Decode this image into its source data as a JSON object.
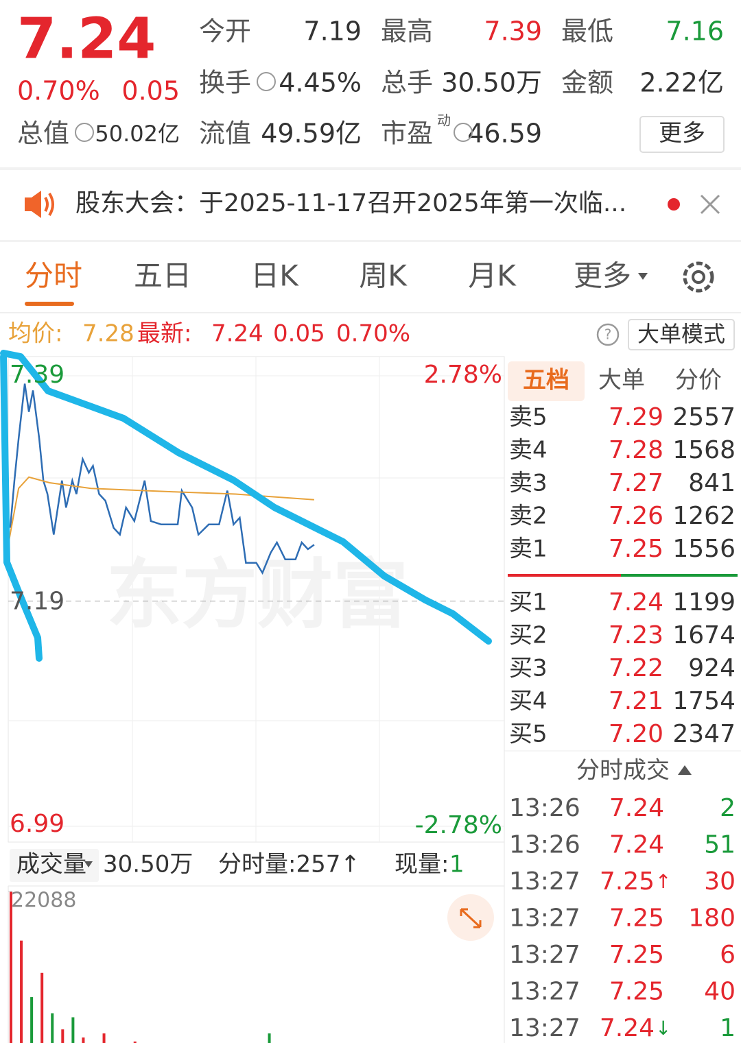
{
  "header": {
    "price": "7.24",
    "change_pct": "0.70%",
    "change": "0.05",
    "stats": [
      {
        "label": "今开",
        "value": "7.19"
      },
      {
        "label": "最高",
        "value": "7.39"
      },
      {
        "label": "最低",
        "value": "7.16"
      },
      {
        "label": "换手",
        "value": "4.45%"
      },
      {
        "label": "总手",
        "value": "30.50万"
      },
      {
        "label": "金额",
        "value": "2.22亿"
      },
      {
        "label": "总值",
        "value": "50.02亿"
      },
      {
        "label": "流值",
        "value": "49.59亿"
      },
      {
        "label": "市盈",
        "sup": "动",
        "value": "46.59"
      }
    ],
    "more": "更多"
  },
  "notice": {
    "text": "股东大会：于2025-11-17召开2025年第一次临..."
  },
  "tabs": [
    "分时",
    "五日",
    "日K",
    "周K",
    "月K",
    "更多"
  ],
  "infobar": {
    "avg_label": "均价:",
    "avg": "7.28",
    "last_label": "最新:",
    "last": "7.24",
    "change": "0.05",
    "change_pct": "0.70%",
    "mode_button": "大单模式"
  },
  "intraday": {
    "type": "line",
    "xlim": [
      0,
      240
    ],
    "ylim": [
      6.99,
      7.39
    ],
    "yticks": [
      6.99,
      7.19,
      7.39
    ],
    "right_labels": [
      "2.78%",
      "-2.78%"
    ],
    "series": [
      {
        "color": "#2e6db4",
        "x": [
          1,
          3,
          5,
          8,
          10,
          12,
          15,
          17,
          19,
          22,
          26,
          28,
          31,
          33,
          36,
          39,
          41,
          44,
          47,
          51,
          54,
          57,
          61,
          66,
          69,
          74,
          82,
          84,
          89,
          92,
          97,
          102,
          106,
          109,
          112,
          115,
          120,
          123,
          127,
          130,
          134,
          139,
          142,
          145,
          148
        ],
        "values": [
          7.255,
          7.297,
          7.334,
          7.383,
          7.358,
          7.377,
          7.334,
          7.297,
          7.285,
          7.249,
          7.297,
          7.273,
          7.297,
          7.285,
          7.316,
          7.304,
          7.31,
          7.285,
          7.279,
          7.255,
          7.249,
          7.273,
          7.261,
          7.297,
          7.261,
          7.258,
          7.258,
          7.288,
          7.273,
          7.249,
          7.258,
          7.258,
          7.288,
          7.258,
          7.264,
          7.224,
          7.224,
          7.215,
          7.233,
          7.242,
          7.227,
          7.227,
          7.242,
          7.236,
          7.24
        ]
      },
      {
        "color": "#e8a23a",
        "x": [
          0,
          5,
          10,
          20,
          40,
          80,
          110,
          148
        ],
        "values": [
          7.24,
          7.29,
          7.3,
          7.295,
          7.29,
          7.287,
          7.285,
          7.28
        ]
      }
    ]
  },
  "volume": {
    "type": "bar",
    "label": "成交量",
    "total": "30.50万",
    "period_volume": "分时量:257↑",
    "current_label": "现量:",
    "current": "1",
    "xlim": [
      0,
      240
    ],
    "ylim": [
      0,
      22088
    ],
    "yticks": [
      22088
    ],
    "x": [
      0,
      5,
      10,
      15,
      20,
      25,
      30,
      35,
      40,
      45,
      50,
      55,
      60,
      65,
      70,
      75,
      80,
      85,
      90,
      95,
      100,
      105,
      110,
      115,
      120,
      125,
      130,
      135,
      140,
      145
    ],
    "values": [
      22088,
      16000,
      9000,
      12000,
      7000,
      5000,
      6500,
      4000,
      3000,
      4500,
      2500,
      2000,
      3500,
      1500,
      2200,
      1800,
      1200,
      2800,
      1500,
      1000,
      1300,
      900,
      1100,
      1600,
      800,
      4500,
      1200,
      2000,
      900,
      1400
    ],
    "colors": [
      "#e4262d",
      "#e4262d",
      "#1a9a3a",
      "#e4262d",
      "#1a9a3a",
      "#e4262d",
      "#1a9a3a",
      "#e4262d",
      "#1a9a3a",
      "#e4262d",
      "#1a9a3a",
      "#e4262d",
      "#e4262d",
      "#1a9a3a",
      "#e4262d",
      "#1a9a3a",
      "#e4262d",
      "#e4262d",
      "#1a9a3a",
      "#e4262d",
      "#1a9a3a",
      "#e4262d",
      "#1a9a3a",
      "#e4262d",
      "#1a9a3a",
      "#1a9a3a",
      "#e4262d",
      "#1a9a3a",
      "#e4262d",
      "#e4262d"
    ]
  },
  "orderbook": {
    "tabs": [
      "五档",
      "大单",
      "分价"
    ],
    "asks": [
      {
        "label": "卖5",
        "price": "7.29",
        "volume": "2557"
      },
      {
        "label": "卖4",
        "price": "7.28",
        "volume": "1568"
      },
      {
        "label": "卖3",
        "price": "7.27",
        "volume": "841"
      },
      {
        "label": "卖2",
        "price": "7.26",
        "volume": "1262"
      },
      {
        "label": "卖1",
        "price": "7.25",
        "volume": "1556"
      }
    ],
    "bids": [
      {
        "label": "买1",
        "price": "7.24",
        "volume": "1199"
      },
      {
        "label": "买2",
        "price": "7.23",
        "volume": "1674"
      },
      {
        "label": "买3",
        "price": "7.22",
        "volume": "924"
      },
      {
        "label": "买4",
        "price": "7.21",
        "volume": "1754"
      },
      {
        "label": "买5",
        "price": "7.20",
        "volume": "2347"
      }
    ]
  },
  "trades": {
    "title": "分时成交",
    "rows": [
      {
        "time": "13:26",
        "price": "7.24",
        "volume": "2",
        "color": "#1a9a3a"
      },
      {
        "time": "13:26",
        "price": "7.24",
        "volume": "51",
        "color": "#1a9a3a"
      },
      {
        "time": "13:27",
        "price": "7.25",
        "arrow": "↑",
        "volume": "30",
        "color": "#e4262d"
      },
      {
        "time": "13:27",
        "price": "7.25",
        "volume": "180",
        "color": "#e4262d"
      },
      {
        "time": "13:27",
        "price": "7.25",
        "volume": "6",
        "color": "#e4262d"
      },
      {
        "time": "13:27",
        "price": "7.25",
        "volume": "40",
        "color": "#e4262d"
      },
      {
        "time": "13:27",
        "price": "7.24",
        "arrow": "↓",
        "volume": "1",
        "color": "#1a9a3a"
      }
    ]
  }
}
